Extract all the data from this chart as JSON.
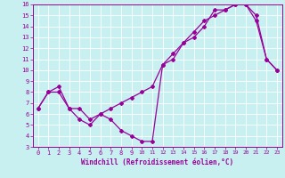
{
  "xlabel": "Windchill (Refroidissement éolien,°C)",
  "bg_color": "#c8f0f0",
  "line_color": "#990099",
  "grid_color": "#ffffff",
  "xlim": [
    -0.5,
    23.5
  ],
  "ylim": [
    3,
    16
  ],
  "xticks": [
    0,
    1,
    2,
    3,
    4,
    5,
    6,
    7,
    8,
    9,
    10,
    11,
    12,
    13,
    14,
    15,
    16,
    17,
    18,
    19,
    20,
    21,
    22,
    23
  ],
  "yticks": [
    3,
    4,
    5,
    6,
    7,
    8,
    9,
    10,
    11,
    12,
    13,
    14,
    15,
    16
  ],
  "line1_x": [
    0,
    1,
    2,
    3,
    4,
    5,
    6,
    7,
    8,
    9,
    10,
    11,
    12,
    13,
    14,
    15,
    16,
    17,
    18,
    19,
    20,
    21,
    22,
    23
  ],
  "line1_y": [
    6.5,
    8.0,
    8.5,
    6.5,
    5.5,
    5.0,
    6.0,
    5.5,
    4.5,
    4.0,
    3.5,
    3.5,
    10.5,
    11.0,
    12.5,
    13.0,
    14.0,
    15.5,
    15.5,
    16.0,
    16.0,
    15.0,
    11.0,
    10.0
  ],
  "line2_x": [
    0,
    1,
    2,
    3,
    4,
    5,
    6,
    7,
    8,
    9,
    10,
    11,
    12,
    13,
    14,
    15,
    16,
    17,
    18,
    19,
    20,
    21,
    22,
    23
  ],
  "line2_y": [
    6.5,
    8.0,
    8.0,
    6.5,
    6.5,
    5.5,
    6.0,
    6.5,
    7.0,
    7.5,
    8.0,
    8.5,
    10.5,
    11.5,
    12.5,
    13.5,
    14.5,
    15.0,
    15.5,
    16.0,
    16.0,
    14.5,
    11.0,
    10.0
  ],
  "xlabel_fontsize": 5.5,
  "tick_fontsize": 5.0,
  "marker_size": 2.0,
  "linewidth": 0.9
}
